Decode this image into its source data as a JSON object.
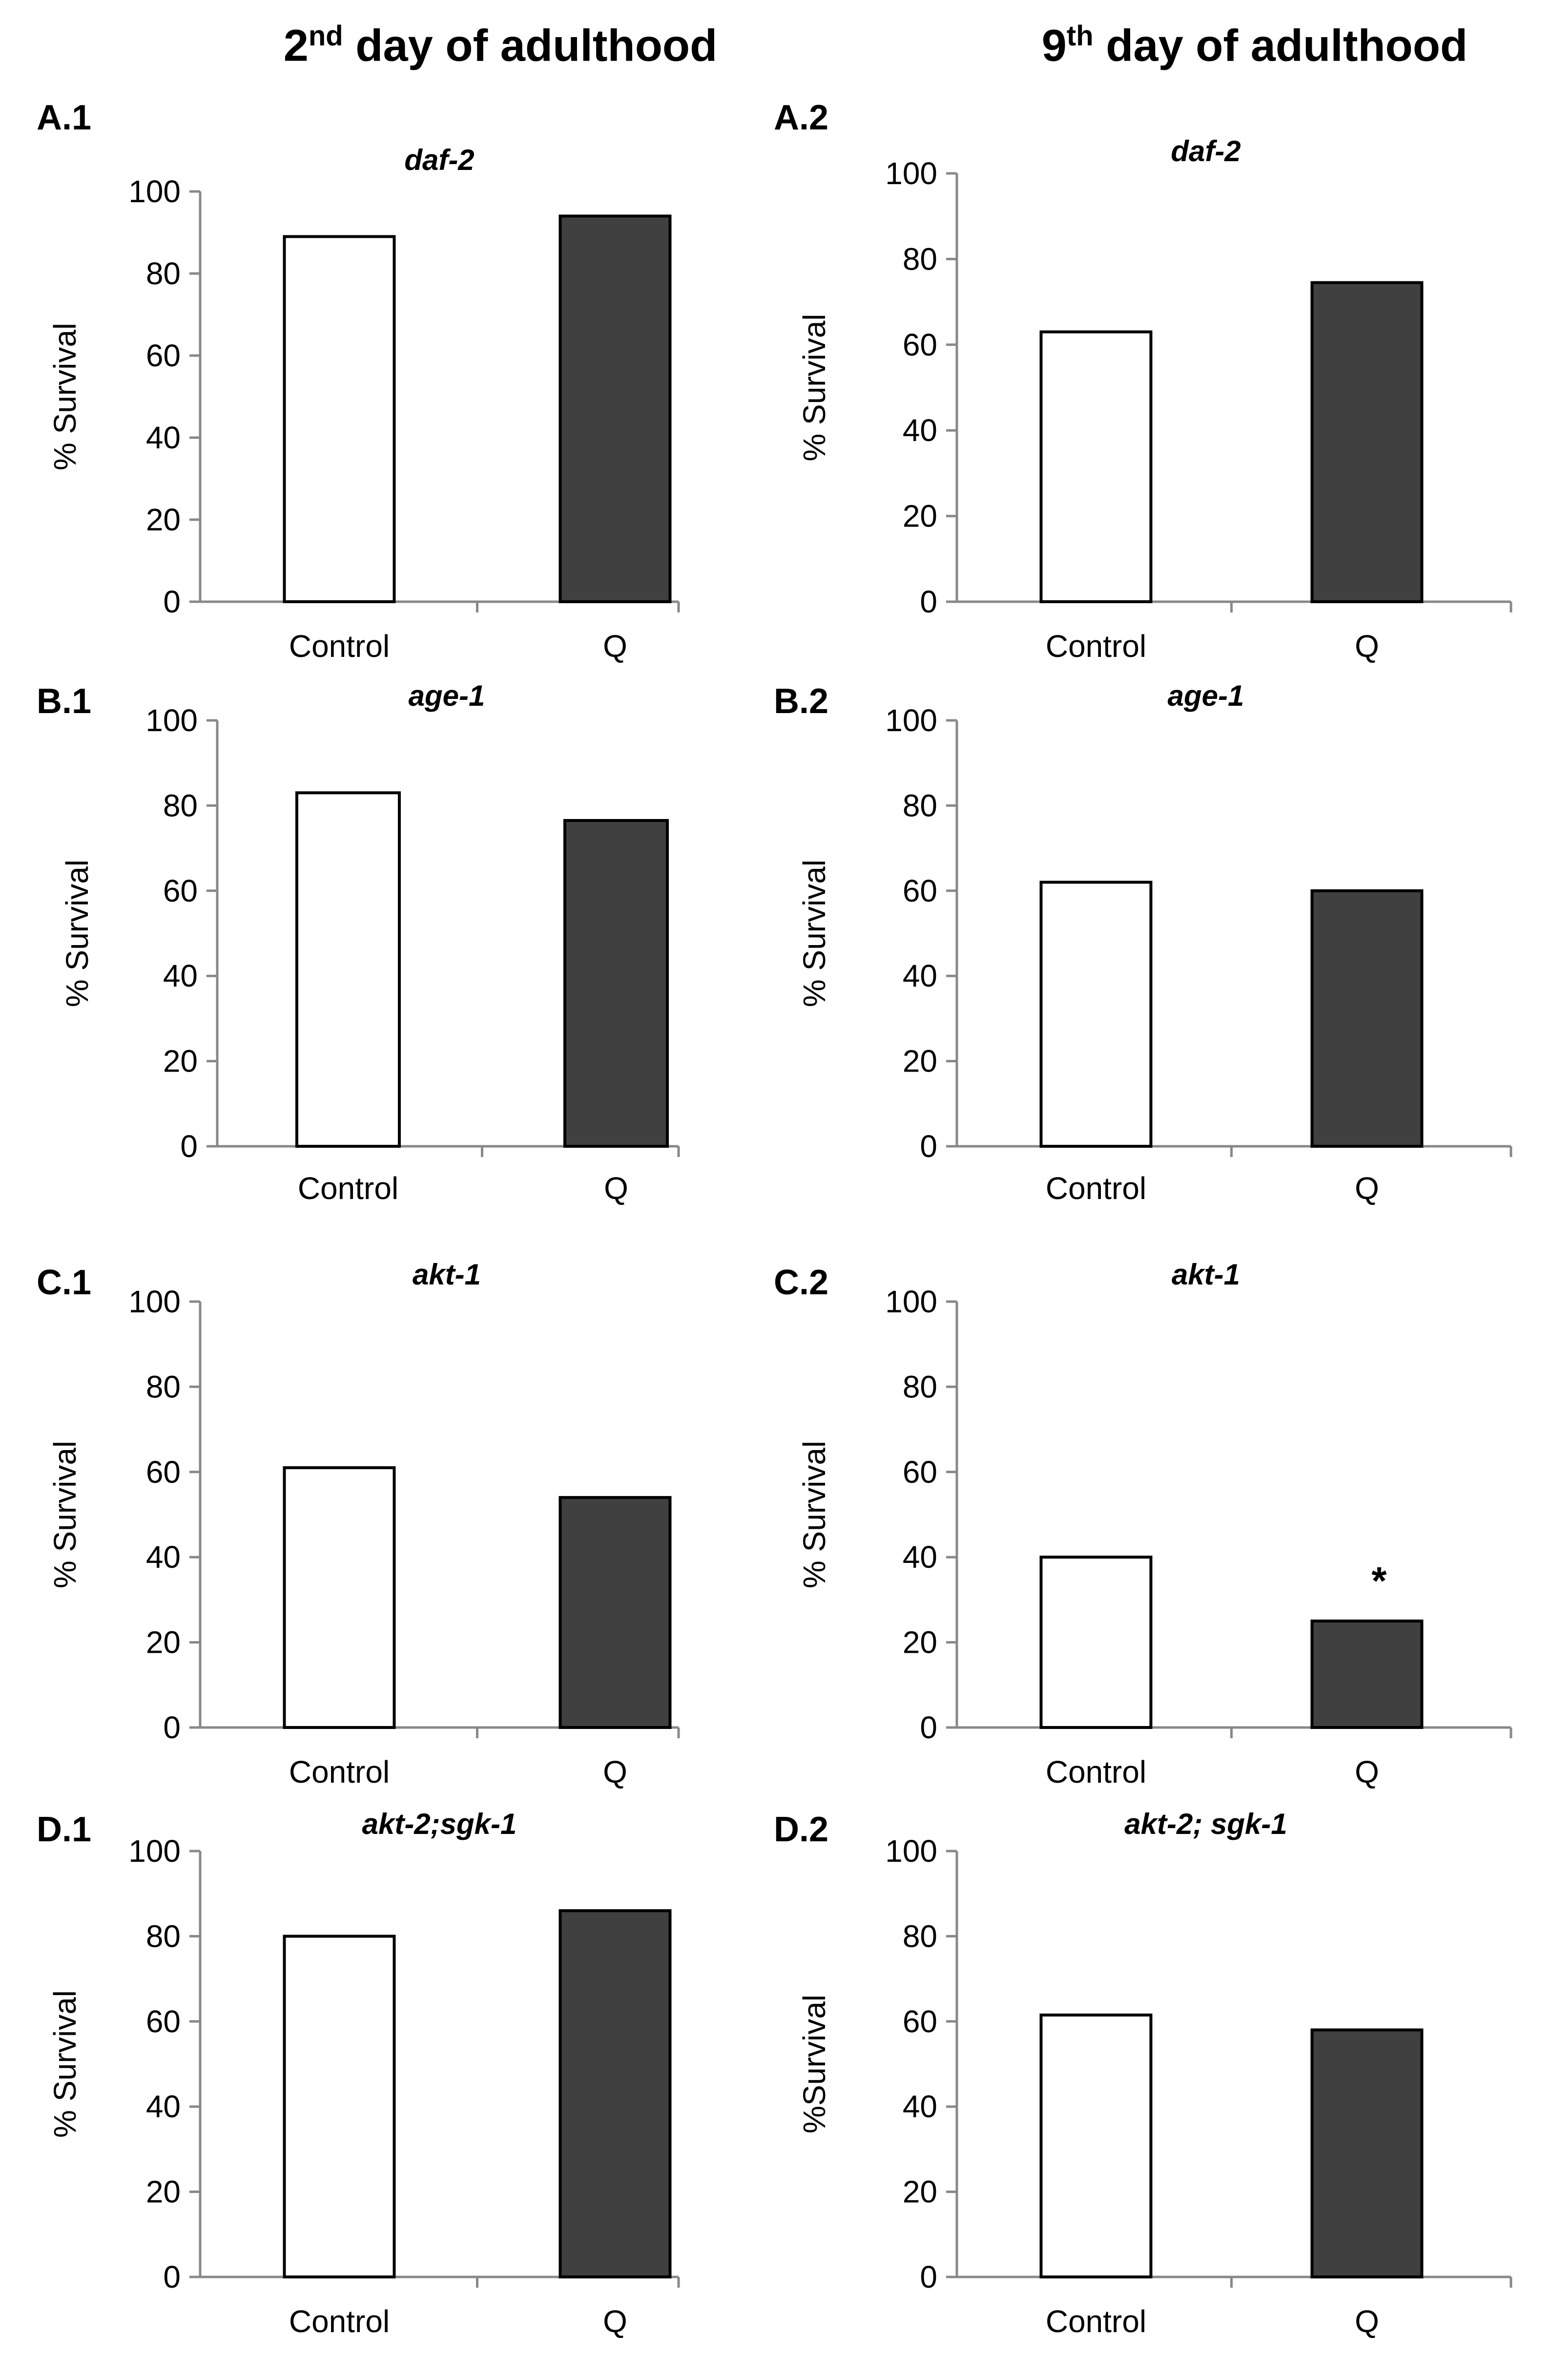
{
  "column_titles": {
    "left": {
      "num": "2",
      "sup": "nd",
      "rest": " day of adulthood"
    },
    "right": {
      "num": "9",
      "sup": "th",
      "rest": " day of adulthood"
    }
  },
  "colors": {
    "control": "#ffffff",
    "q": "#404040",
    "axis": "#888888",
    "outline": "#000000"
  },
  "chart_data": [
    {
      "panel": "A.1",
      "type": "bar",
      "title": "daf-2",
      "ylabel": "% Survival",
      "categories": [
        "Control",
        "Q"
      ],
      "values": [
        89,
        94
      ],
      "ylim": [
        0,
        100
      ],
      "yticks": [
        "0",
        "20",
        "40",
        "60",
        "80",
        "100"
      ],
      "annotations": []
    },
    {
      "panel": "A.2",
      "type": "bar",
      "title": "daf-2",
      "ylabel": "% Survival",
      "categories": [
        "Control",
        "Q"
      ],
      "values": [
        63,
        74.5
      ],
      "ylim": [
        0,
        100
      ],
      "yticks": [
        "0",
        "20",
        "40",
        "60",
        "80",
        "100"
      ],
      "annotations": []
    },
    {
      "panel": "B.1",
      "type": "bar",
      "title": "age-1",
      "ylabel": "% Survival",
      "categories": [
        "Control",
        "Q"
      ],
      "values": [
        83,
        76.5
      ],
      "ylim": [
        0,
        100
      ],
      "yticks": [
        "0",
        "20",
        "40",
        "60",
        "80",
        "100"
      ],
      "annotations": []
    },
    {
      "panel": "B.2",
      "type": "bar",
      "title": "age-1",
      "ylabel": "% Survival",
      "categories": [
        "Control",
        "Q"
      ],
      "values": [
        62,
        60
      ],
      "ylim": [
        0,
        100
      ],
      "yticks": [
        "0",
        "20",
        "40",
        "60",
        "80",
        "100"
      ],
      "annotations": []
    },
    {
      "panel": "C.1",
      "type": "bar",
      "title": "akt-1",
      "ylabel": "% Survival",
      "categories": [
        "Control",
        "Q"
      ],
      "values": [
        61,
        54
      ],
      "ylim": [
        0,
        100
      ],
      "yticks": [
        "0",
        "20",
        "40",
        "60",
        "80",
        "100"
      ],
      "annotations": []
    },
    {
      "panel": "C.2",
      "type": "bar",
      "title": "akt-1",
      "ylabel": "% Survival",
      "categories": [
        "Control",
        "Q"
      ],
      "values": [
        40,
        25
      ],
      "ylim": [
        0,
        100
      ],
      "yticks": [
        "0",
        "20",
        "40",
        "60",
        "80",
        "100"
      ],
      "annotations": [
        {
          "category": "Q",
          "text": "*"
        }
      ]
    },
    {
      "panel": "D.1",
      "type": "bar",
      "title": "akt-2;sgk-1",
      "ylabel": "% Survival",
      "categories": [
        "Control",
        "Q"
      ],
      "values": [
        80,
        86
      ],
      "ylim": [
        0,
        100
      ],
      "yticks": [
        "0",
        "20",
        "40",
        "60",
        "80",
        "100"
      ],
      "annotations": []
    },
    {
      "panel": "D.2",
      "type": "bar",
      "title": "akt-2; sgk-1",
      "ylabel": "%Survival",
      "categories": [
        "Control",
        "Q"
      ],
      "values": [
        61.5,
        58
      ],
      "ylim": [
        0,
        100
      ],
      "yticks": [
        "0",
        "20",
        "40",
        "60",
        "80",
        "100"
      ],
      "annotations": []
    }
  ]
}
